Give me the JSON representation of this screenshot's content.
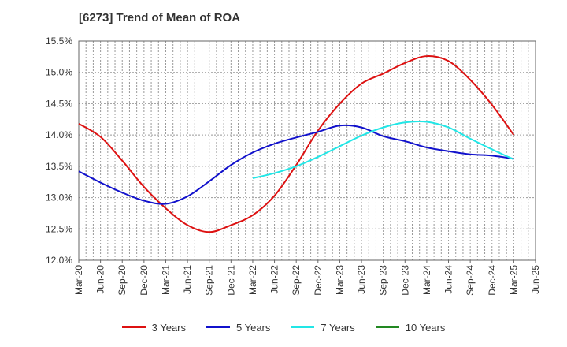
{
  "chart_data": {
    "type": "line",
    "title": "[6273]  Trend of Mean of ROA",
    "xlabel": "",
    "ylabel": "",
    "ylim": [
      12.0,
      15.5
    ],
    "yticks": [
      12.0,
      12.5,
      13.0,
      13.5,
      14.0,
      14.5,
      15.0,
      15.5
    ],
    "ytick_labels": [
      "12.0%",
      "12.5%",
      "13.0%",
      "13.5%",
      "14.0%",
      "14.5%",
      "15.0%",
      "15.5%"
    ],
    "x_tick_labels": [
      "Mar-20",
      "Jun-20",
      "Sep-20",
      "Dec-20",
      "Mar-21",
      "Jun-21",
      "Sep-21",
      "Dec-21",
      "Mar-22",
      "Jun-22",
      "Sep-22",
      "Dec-22",
      "Mar-23",
      "Jun-23",
      "Sep-23",
      "Dec-23",
      "Mar-24",
      "Jun-24",
      "Sep-24",
      "Dec-24",
      "Mar-25",
      "Jun-25"
    ],
    "grid": true,
    "legend_position": "bottom",
    "series": [
      {
        "name": "3 Years",
        "color": "#dd1111",
        "x": [
          "Mar-20",
          "Jun-20",
          "Sep-20",
          "Dec-20",
          "Mar-21",
          "Jun-21",
          "Sep-21",
          "Dec-21",
          "Mar-22",
          "Jun-22",
          "Sep-22",
          "Dec-22",
          "Mar-23",
          "Jun-23",
          "Sep-23",
          "Dec-23",
          "Mar-24",
          "Jun-24",
          "Sep-24",
          "Dec-24",
          "Mar-25"
        ],
        "values": [
          14.18,
          13.97,
          13.59,
          13.17,
          12.83,
          12.56,
          12.45,
          12.56,
          12.72,
          13.03,
          13.52,
          14.07,
          14.5,
          14.82,
          14.98,
          15.15,
          15.26,
          15.18,
          14.88,
          14.48,
          14.0
        ]
      },
      {
        "name": "5 Years",
        "color": "#1111cc",
        "x": [
          "Mar-20",
          "Jun-20",
          "Sep-20",
          "Dec-20",
          "Mar-21",
          "Jun-21",
          "Sep-21",
          "Dec-21",
          "Mar-22",
          "Jun-22",
          "Sep-22",
          "Dec-22",
          "Mar-23",
          "Jun-23",
          "Sep-23",
          "Dec-23",
          "Mar-24",
          "Jun-24",
          "Sep-24",
          "Dec-24",
          "Mar-25"
        ],
        "values": [
          13.42,
          13.24,
          13.08,
          12.95,
          12.9,
          13.02,
          13.26,
          13.52,
          13.72,
          13.86,
          13.96,
          14.05,
          14.15,
          14.12,
          13.98,
          13.9,
          13.8,
          13.74,
          13.69,
          13.67,
          13.62
        ]
      },
      {
        "name": "7 Years",
        "color": "#22e6e6",
        "x": [
          "Mar-22",
          "Jun-22",
          "Sep-22",
          "Dec-22",
          "Mar-23",
          "Jun-23",
          "Sep-23",
          "Dec-23",
          "Mar-24",
          "Jun-24",
          "Sep-24",
          "Dec-24",
          "Mar-25"
        ],
        "values": [
          13.31,
          13.39,
          13.5,
          13.65,
          13.82,
          13.99,
          14.12,
          14.2,
          14.21,
          14.12,
          13.94,
          13.77,
          13.61
        ]
      },
      {
        "name": "10 Years",
        "color": "#228822",
        "x": [],
        "values": []
      }
    ]
  }
}
